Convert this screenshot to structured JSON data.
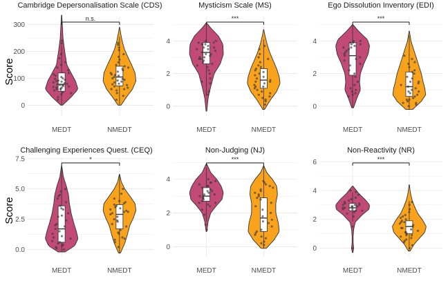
{
  "figure": {
    "ylabel": "Score",
    "colors": {
      "MEDT": "#c24a76",
      "NMEDT": "#f9a21b",
      "grid": "#e6e6e6",
      "outline": "#333333",
      "box": "#ffffff",
      "point": "#3a3a3a"
    }
  },
  "chart_data": [
    {
      "type": "violin",
      "title": "Cambridge Depersonalisation Scale (CDS)",
      "categories": [
        "MEDT",
        "NMEDT"
      ],
      "ylim": [
        -40,
        330
      ],
      "yticks": [
        0,
        100,
        200,
        300
      ],
      "ytick_labels": [
        "0",
        "100",
        "200",
        "300"
      ],
      "significance": "n.s.",
      "series": [
        {
          "name": "MEDT",
          "min": 0,
          "max": 335,
          "median": 78,
          "q1": 52,
          "q3": 120,
          "density_y": [
            0,
            30,
            60,
            90,
            120,
            150,
            200,
            250,
            300,
            335
          ],
          "density_w": [
            0.05,
            0.55,
            0.95,
            0.8,
            0.55,
            0.3,
            0.18,
            0.08,
            0.04,
            0.01
          ],
          "points": [
            40,
            48,
            55,
            60,
            62,
            65,
            68,
            70,
            72,
            75,
            78,
            80,
            82,
            85,
            88,
            90,
            95,
            98,
            100,
            105,
            110,
            115,
            120,
            130,
            140,
            150,
            160,
            175,
            190,
            230,
            240,
            30,
            20,
            45,
            58,
            66,
            74,
            92
          ]
        },
        {
          "name": "NMEDT",
          "min": 0,
          "max": 290,
          "median": 105,
          "q1": 72,
          "q3": 145,
          "density_y": [
            0,
            30,
            60,
            90,
            120,
            150,
            180,
            210,
            240,
            270,
            290
          ],
          "density_w": [
            0.08,
            0.4,
            0.75,
            0.95,
            0.9,
            0.7,
            0.48,
            0.28,
            0.15,
            0.06,
            0.01
          ],
          "points": [
            20,
            35,
            45,
            55,
            60,
            65,
            70,
            75,
            80,
            85,
            88,
            92,
            95,
            98,
            100,
            105,
            110,
            115,
            120,
            125,
            130,
            135,
            140,
            150,
            160,
            170,
            180,
            190,
            205,
            215,
            225,
            232,
            60,
            78,
            112,
            145
          ]
        }
      ]
    },
    {
      "type": "violin",
      "title": "Mysticism Scale (MS)",
      "categories": [
        "MEDT",
        "NMEDT"
      ],
      "ylim": [
        -0.6,
        5.5
      ],
      "yticks": [
        0,
        2,
        4
      ],
      "ytick_labels": [
        "0",
        "2",
        "4"
      ],
      "significance": "***",
      "series": [
        {
          "name": "MEDT",
          "min": -0.3,
          "max": 5.1,
          "median": 3.3,
          "q1": 2.6,
          "q3": 3.9,
          "density_y": [
            -0.3,
            0.5,
            1.2,
            2.0,
            2.6,
            3.2,
            3.8,
            4.3,
            4.8,
            5.1
          ],
          "density_w": [
            0.02,
            0.1,
            0.25,
            0.45,
            0.8,
            0.98,
            0.95,
            0.7,
            0.25,
            0.02
          ],
          "points": [
            0.7,
            0.9,
            1.4,
            1.7,
            2.0,
            2.2,
            2.4,
            2.5,
            2.7,
            2.8,
            2.9,
            3.0,
            3.1,
            3.2,
            3.3,
            3.4,
            3.5,
            3.6,
            3.7,
            3.8,
            3.9,
            4.0,
            4.0,
            3.9,
            3.5,
            3.2,
            2.9,
            2.6,
            3.6,
            3.8,
            1.5,
            3.0
          ]
        },
        {
          "name": "NMEDT",
          "min": -0.2,
          "max": 4.7,
          "median": 1.6,
          "q1": 1.1,
          "q3": 2.3,
          "density_y": [
            -0.2,
            0.4,
            0.9,
            1.4,
            1.8,
            2.3,
            2.8,
            3.3,
            3.8,
            4.3,
            4.7
          ],
          "density_w": [
            0.05,
            0.4,
            0.75,
            0.95,
            0.9,
            0.75,
            0.55,
            0.35,
            0.2,
            0.08,
            0.01
          ],
          "points": [
            0.1,
            0.3,
            0.4,
            0.6,
            0.7,
            0.8,
            1.0,
            1.1,
            1.2,
            1.3,
            1.4,
            1.5,
            1.6,
            1.7,
            1.8,
            1.9,
            2.0,
            2.1,
            2.2,
            2.4,
            2.5,
            2.7,
            2.9,
            3.0,
            3.2,
            3.5,
            3.7,
            1.5,
            0.9,
            2.3,
            1.2,
            0.5
          ]
        }
      ]
    },
    {
      "type": "violin",
      "title": "Ego Dissolution Inventory (EDI)",
      "categories": [
        "MEDT",
        "NMEDT"
      ],
      "ylim": [
        -0.6,
        5.5
      ],
      "yticks": [
        0,
        2,
        4
      ],
      "ytick_labels": [
        "0",
        "2",
        "4"
      ],
      "significance": "***",
      "series": [
        {
          "name": "MEDT",
          "min": -0.1,
          "max": 5.0,
          "median": 3.1,
          "q1": 1.9,
          "q3": 3.9,
          "density_y": [
            -0.1,
            0.5,
            1.0,
            1.5,
            2.0,
            2.6,
            3.2,
            3.7,
            4.1,
            4.6,
            5.0
          ],
          "density_w": [
            0.05,
            0.25,
            0.45,
            0.4,
            0.45,
            0.65,
            0.9,
            0.98,
            0.85,
            0.35,
            0.02
          ],
          "points": [
            0.6,
            0.8,
            0.9,
            1.0,
            1.1,
            1.5,
            1.8,
            2.0,
            2.2,
            2.5,
            2.8,
            3.0,
            3.1,
            3.2,
            3.4,
            3.5,
            3.6,
            3.7,
            3.8,
            3.9,
            4.0,
            4.0,
            3.9,
            3.6,
            3.3,
            2.6,
            1.3,
            0.7,
            3.8,
            2.9
          ]
        },
        {
          "name": "NMEDT",
          "min": -0.2,
          "max": 4.6,
          "median": 1.2,
          "q1": 0.6,
          "q3": 2.1,
          "density_y": [
            -0.2,
            0.3,
            0.7,
            1.1,
            1.5,
            2.0,
            2.5,
            3.0,
            3.5,
            4.0,
            4.6
          ],
          "density_w": [
            0.2,
            0.7,
            0.95,
            0.9,
            0.8,
            0.7,
            0.55,
            0.4,
            0.25,
            0.1,
            0.01
          ],
          "points": [
            0.0,
            0.1,
            0.2,
            0.3,
            0.4,
            0.5,
            0.6,
            0.7,
            0.8,
            0.9,
            1.0,
            1.1,
            1.2,
            1.3,
            1.4,
            1.5,
            1.7,
            1.8,
            2.0,
            2.2,
            2.4,
            2.6,
            2.7,
            2.9,
            3.1,
            0.4,
            0.9,
            1.5,
            2.1,
            0.2
          ]
        }
      ]
    },
    {
      "type": "violin",
      "title": "Challenging Experiences Quest. (CEQ)",
      "categories": [
        "MEDT",
        "NMEDT"
      ],
      "ylim": [
        -0.6,
        7.6
      ],
      "yticks": [
        0,
        2.5,
        5,
        7.5
      ],
      "ytick_labels": [
        "0.0",
        "2.5",
        "5.0",
        "7.5"
      ],
      "significance": "*",
      "series": [
        {
          "name": "MEDT",
          "min": -0.2,
          "max": 6.9,
          "median": 1.7,
          "q1": 0.6,
          "q3": 3.6,
          "density_y": [
            -0.2,
            0.3,
            0.9,
            1.5,
            2.2,
            3.0,
            3.8,
            4.5,
            5.2,
            6.0,
            6.9
          ],
          "density_w": [
            0.2,
            0.75,
            0.95,
            0.85,
            0.7,
            0.55,
            0.45,
            0.4,
            0.28,
            0.1,
            0.01
          ],
          "points": [
            0.0,
            0.1,
            0.2,
            0.3,
            0.5,
            0.7,
            0.9,
            1.1,
            1.3,
            1.5,
            1.7,
            1.9,
            2.1,
            2.4,
            2.7,
            3.0,
            3.3,
            3.6,
            3.9,
            4.2,
            4.5,
            4.8,
            5.0,
            0.4,
            1.0,
            2.0,
            3.4,
            4.4,
            0.6,
            2.8
          ]
        },
        {
          "name": "NMEDT",
          "min": -0.3,
          "max": 6.2,
          "median": 2.9,
          "q1": 1.7,
          "q3": 3.7,
          "density_y": [
            -0.3,
            0.5,
            1.2,
            2.0,
            2.6,
            3.2,
            3.8,
            4.4,
            5.0,
            5.6,
            6.2
          ],
          "density_w": [
            0.05,
            0.3,
            0.45,
            0.6,
            0.8,
            0.95,
            0.9,
            0.6,
            0.3,
            0.1,
            0.01
          ],
          "points": [
            0.2,
            0.6,
            0.8,
            1.0,
            1.3,
            1.6,
            1.9,
            2.1,
            2.3,
            2.5,
            2.7,
            2.9,
            3.0,
            3.1,
            3.2,
            3.3,
            3.4,
            3.5,
            3.6,
            3.7,
            3.8,
            4.0,
            4.2,
            4.6,
            5.0,
            0.9,
            2.4,
            3.1,
            3.9,
            1.4
          ]
        }
      ]
    },
    {
      "type": "violin",
      "title": "Non-Judging (NJ)",
      "categories": [
        "MEDT",
        "NMEDT"
      ],
      "ylim": [
        -0.6,
        5.3
      ],
      "yticks": [
        0,
        2,
        4
      ],
      "ytick_labels": [
        "0",
        "2",
        "4"
      ],
      "significance": "***",
      "series": [
        {
          "name": "MEDT",
          "min": 0.9,
          "max": 4.9,
          "median": 3.0,
          "q1": 2.7,
          "q3": 3.5,
          "density_y": [
            0.9,
            1.5,
            2.0,
            2.4,
            2.8,
            3.2,
            3.6,
            4.0,
            4.4,
            4.9
          ],
          "density_w": [
            0.02,
            0.1,
            0.25,
            0.55,
            0.9,
            0.98,
            0.85,
            0.6,
            0.25,
            0.02
          ],
          "points": [
            1.3,
            1.9,
            2.2,
            2.4,
            2.5,
            2.6,
            2.7,
            2.8,
            2.9,
            3.0,
            3.1,
            3.2,
            3.3,
            3.4,
            3.5,
            3.6,
            3.7,
            3.8,
            3.9,
            4.0,
            3.0,
            2.9,
            3.3,
            3.6,
            2.6,
            3.1,
            1.0,
            3.8
          ]
        },
        {
          "name": "NMEDT",
          "min": -0.1,
          "max": 4.8,
          "median": 1.7,
          "q1": 0.9,
          "q3": 2.9,
          "density_y": [
            -0.1,
            0.4,
            0.9,
            1.4,
            2.0,
            2.6,
            3.1,
            3.6,
            4.0,
            4.4,
            4.8
          ],
          "density_w": [
            0.15,
            0.6,
            0.9,
            0.85,
            0.7,
            0.7,
            0.8,
            0.75,
            0.5,
            0.18,
            0.01
          ],
          "points": [
            0.1,
            0.3,
            0.5,
            0.6,
            0.8,
            0.9,
            1.0,
            1.2,
            1.4,
            1.6,
            1.8,
            2.0,
            2.2,
            2.4,
            2.6,
            2.8,
            3.0,
            3.1,
            3.2,
            3.3,
            3.4,
            3.5,
            3.6,
            3.7,
            3.8,
            0.7,
            1.5,
            2.9,
            3.9,
            0.2
          ]
        }
      ]
    },
    {
      "type": "violin",
      "title": "Non-Reactivity (NR)",
      "categories": [
        "MEDT",
        "NMEDT"
      ],
      "ylim": [
        -0.6,
        6.3
      ],
      "yticks": [
        0,
        2,
        4,
        6
      ],
      "ytick_labels": [
        "0",
        "2",
        "4",
        "6"
      ],
      "significance": "***",
      "series": [
        {
          "name": "MEDT",
          "min": -0.3,
          "max": 4.3,
          "median": 2.8,
          "q1": 2.6,
          "q3": 3.1,
          "density_y": [
            -0.3,
            0.0,
            0.4,
            0.8,
            1.3,
            1.8,
            2.3,
            2.7,
            3.0,
            3.4,
            3.8,
            4.3
          ],
          "density_w": [
            0.02,
            0.06,
            0.03,
            0.03,
            0.06,
            0.15,
            0.55,
            0.95,
            0.98,
            0.7,
            0.35,
            0.02
          ],
          "points": [
            0.0,
            1.5,
            2.2,
            2.4,
            2.5,
            2.6,
            2.7,
            2.8,
            2.8,
            2.9,
            2.9,
            3.0,
            3.0,
            3.1,
            3.2,
            3.3,
            3.4,
            3.5,
            3.7,
            3.9,
            4.0,
            2.7,
            3.1,
            2.6,
            3.0,
            2.9
          ]
        },
        {
          "name": "NMEDT",
          "min": -0.2,
          "max": 4.4,
          "median": 1.5,
          "q1": 1.0,
          "q3": 1.9,
          "density_y": [
            -0.2,
            0.3,
            0.7,
            1.1,
            1.5,
            1.9,
            2.4,
            2.9,
            3.4,
            3.9,
            4.4
          ],
          "density_w": [
            0.05,
            0.3,
            0.6,
            0.9,
            0.98,
            0.8,
            0.5,
            0.3,
            0.15,
            0.06,
            0.01
          ],
          "points": [
            0.0,
            0.2,
            0.4,
            0.6,
            0.7,
            0.8,
            0.9,
            1.0,
            1.1,
            1.2,
            1.3,
            1.4,
            1.5,
            1.6,
            1.7,
            1.8,
            1.9,
            2.0,
            2.1,
            2.3,
            2.5,
            2.7,
            3.0,
            3.2,
            1.4,
            0.9,
            1.8,
            2.2,
            0.5,
            1.1
          ]
        }
      ]
    }
  ]
}
